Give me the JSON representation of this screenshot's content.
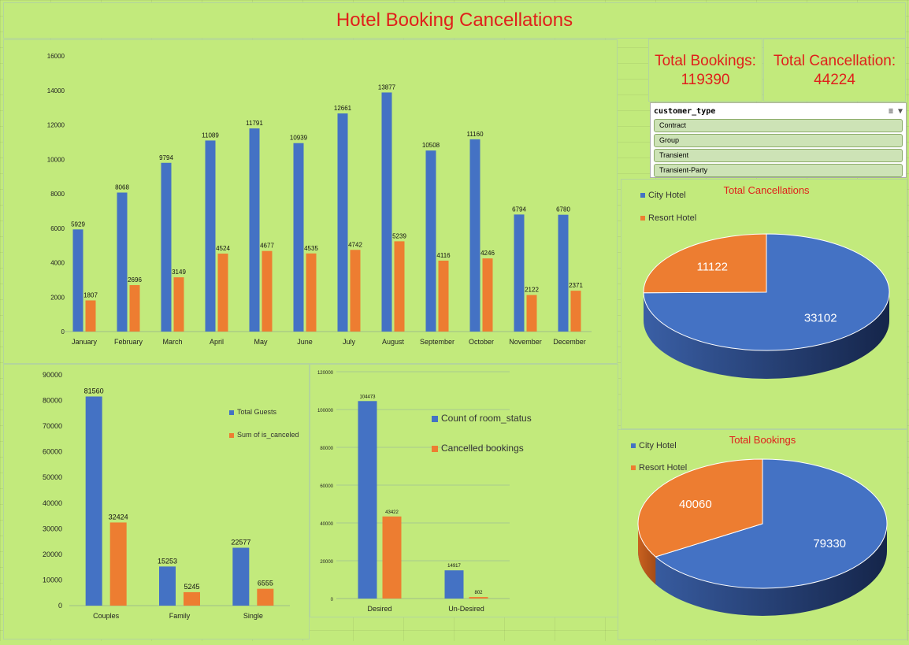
{
  "dashboard": {
    "title": "Hotel Booking Cancellations",
    "kpis": [
      {
        "label": "Total Bookings:",
        "value": "119390"
      },
      {
        "label": "Total Cancellation:",
        "value": "44224"
      }
    ]
  },
  "slicer": {
    "title": "customer_type",
    "items": [
      "Contract",
      "Group",
      "Transient",
      "Transient-Party"
    ]
  },
  "colors": {
    "blue": "#4472c4",
    "orange": "#ed7d31",
    "title_red": "#e0201b",
    "background": "#c2ea7c"
  },
  "chart_data": [
    {
      "type": "bar",
      "id": "monthly",
      "categories": [
        "January",
        "February",
        "March",
        "April",
        "May",
        "June",
        "July",
        "August",
        "September",
        "October",
        "November",
        "December"
      ],
      "series": [
        {
          "values": [
            5929,
            8068,
            9794,
            11089,
            11791,
            10939,
            12661,
            13877,
            10508,
            11160,
            6794,
            6780
          ]
        },
        {
          "values": [
            1807,
            2696,
            3149,
            4524,
            4677,
            4535,
            4742,
            5239,
            4116,
            4246,
            2122,
            2371
          ]
        }
      ],
      "ylim": [
        0,
        16000
      ],
      "yticks": [
        0,
        2000,
        4000,
        6000,
        8000,
        10000,
        12000,
        14000,
        16000
      ],
      "grid": false,
      "data_labels": true
    },
    {
      "type": "bar",
      "id": "guests",
      "categories": [
        "Couples",
        "Family",
        "Single"
      ],
      "series": [
        {
          "name": "Total Guests",
          "values": [
            81560,
            15253,
            22577
          ]
        },
        {
          "name": "Sum of is_canceled",
          "values": [
            32424,
            5245,
            6555
          ]
        }
      ],
      "ylim": [
        0,
        90000
      ],
      "yticks": [
        0,
        10000,
        20000,
        30000,
        40000,
        50000,
        60000,
        70000,
        80000,
        90000
      ],
      "legend": "right",
      "data_labels": true
    },
    {
      "type": "bar",
      "id": "room",
      "categories": [
        "Desired",
        "Un-Desired"
      ],
      "series": [
        {
          "name": "Count of room_status",
          "values": [
            104473,
            14917
          ]
        },
        {
          "name": "Cancelled bookings",
          "values": [
            43422,
            802
          ]
        }
      ],
      "ylim": [
        0,
        120000
      ],
      "yticks": [
        0,
        20000,
        40000,
        60000,
        80000,
        100000,
        120000
      ],
      "grid": true,
      "legend": "right",
      "data_labels": true
    },
    {
      "type": "pie",
      "id": "cancellations",
      "title": "Total Cancellations",
      "labels": [
        "City Hotel",
        "Resort Hotel"
      ],
      "values": [
        33102,
        11122
      ],
      "legend": "top-left"
    },
    {
      "type": "pie",
      "id": "bookings",
      "title": "Total Bookings",
      "labels": [
        "City Hotel",
        "Resort Hotel"
      ],
      "values": [
        79330,
        40060
      ],
      "legend": "top-left"
    }
  ]
}
